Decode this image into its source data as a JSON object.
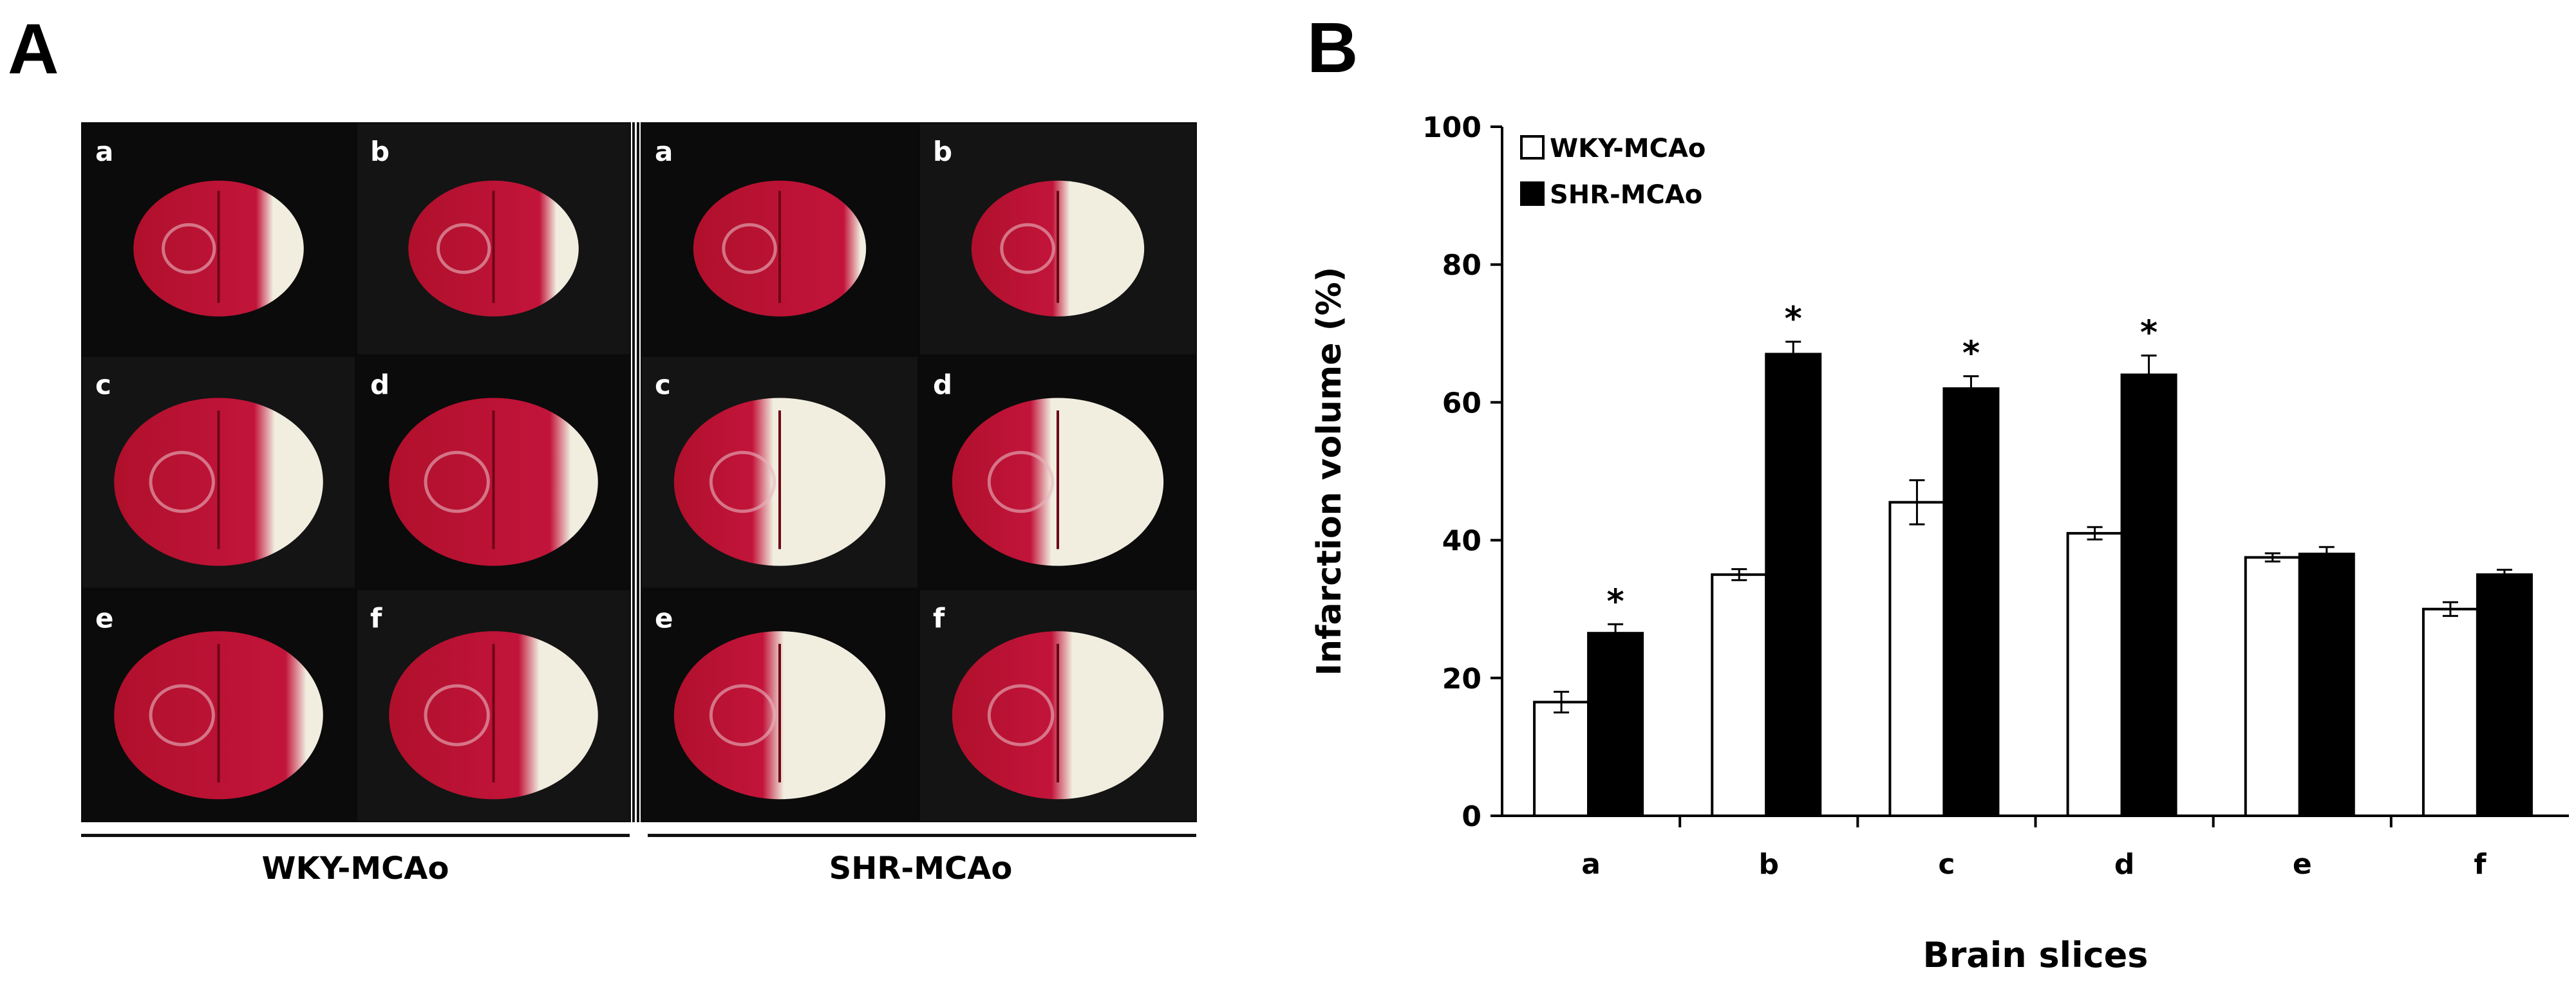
{
  "panel_labels": {
    "a": "A",
    "b": "B"
  },
  "photos": {
    "groups": [
      {
        "name": "WKY-MCAo",
        "slices": [
          "a",
          "b",
          "c",
          "d",
          "e",
          "f"
        ]
      },
      {
        "name": "SHR-MCAo",
        "slices": [
          "a",
          "b",
          "c",
          "d",
          "e",
          "f"
        ]
      }
    ]
  },
  "colors": {
    "tissue_red": "#b0102c",
    "infarct_white": "#f1eee0",
    "background": "#0a0a0a"
  },
  "chart_data": {
    "type": "bar",
    "categories": [
      "a",
      "b",
      "c",
      "d",
      "e",
      "f"
    ],
    "series": [
      {
        "name": "WKY-MCAo",
        "fill": "#ffffff",
        "values": [
          16.5,
          35,
          45.5,
          41,
          37.5,
          30
        ],
        "errors": [
          1.5,
          0.8,
          3.2,
          0.9,
          0.6,
          1.0
        ]
      },
      {
        "name": "SHR-MCAo",
        "fill": "#000000",
        "values": [
          26.5,
          67,
          62,
          64,
          38,
          35
        ],
        "errors": [
          1.3,
          1.8,
          1.8,
          2.8,
          1.0,
          0.7
        ]
      }
    ],
    "significance": [
      "*",
      "*",
      "*",
      "*",
      "",
      ""
    ],
    "title": "",
    "xlabel": "Brain slices",
    "ylabel": "Infarction volume (%)",
    "ylim": [
      0,
      100
    ],
    "yticks": [
      0,
      20,
      40,
      60,
      80,
      100
    ],
    "legend": "top-left"
  }
}
